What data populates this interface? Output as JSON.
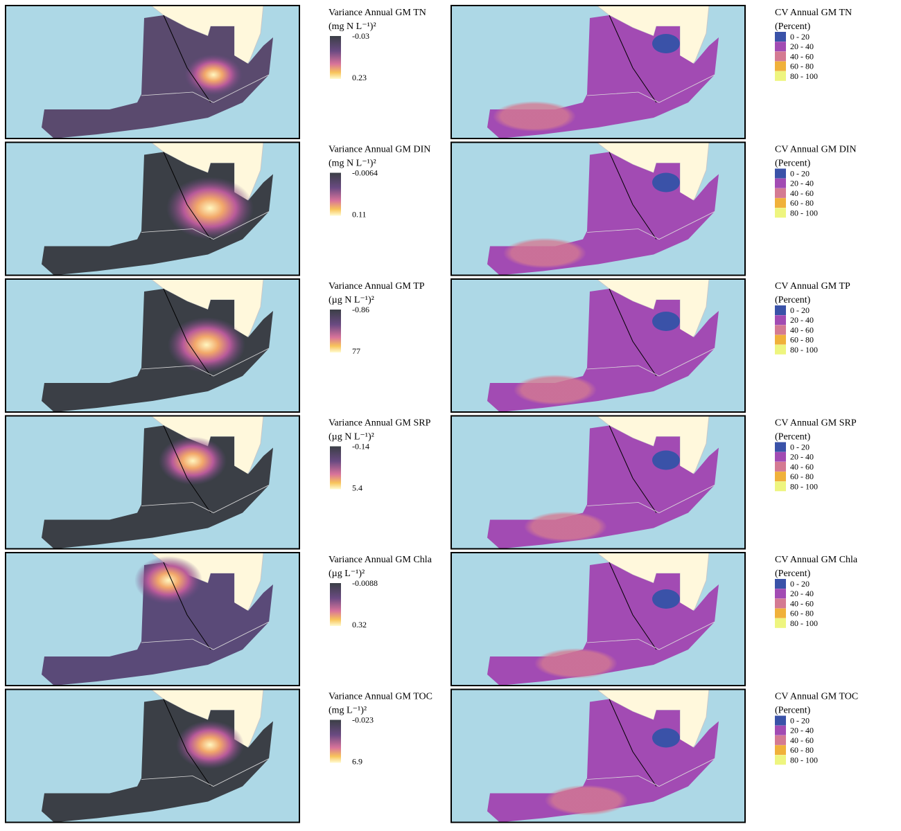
{
  "panels": [
    {
      "variance": {
        "title": "Variance Annual GM TN",
        "unit": "(mg N L⁻¹)²",
        "top": -0.03,
        "bottom": 0.23
      },
      "cv": {
        "title": "CV Annual GM TN",
        "unit": "(Percent)"
      }
    },
    {
      "variance": {
        "title": "Variance Annual GM DIN",
        "unit": "(mg N L⁻¹)²",
        "top": -0.0064,
        "bottom": 0.11
      },
      "cv": {
        "title": "CV Annual GM DIN",
        "unit": "(Percent)"
      }
    },
    {
      "variance": {
        "title": "Variance Annual GM TP",
        "unit": "(µg N L⁻¹)²",
        "top": -0.86,
        "bottom": 77
      },
      "cv": {
        "title": "CV Annual GM TP",
        "unit": "(Percent)"
      }
    },
    {
      "variance": {
        "title": "Variance Annual GM SRP",
        "unit": "(µg N L⁻¹)²",
        "top": -0.14,
        "bottom": 5.4
      },
      "cv": {
        "title": "CV Annual GM SRP",
        "unit": "(Percent)"
      }
    },
    {
      "variance": {
        "title": "Variance Annual GM Chla",
        "unit": "(µg L⁻¹)²",
        "top": -0.0088,
        "bottom": 0.32
      },
      "cv": {
        "title": "CV Annual GM Chla",
        "unit": "(Percent)"
      }
    },
    {
      "variance": {
        "title": "Variance Annual GM TOC",
        "unit": "(mg L⁻¹)²",
        "top": -0.023,
        "bottom": 6.9
      },
      "cv": {
        "title": "CV Annual GM TOC",
        "unit": "(Percent)"
      }
    }
  ],
  "cv_legend": {
    "classes": [
      "0 - 20",
      "20 - 40",
      "40 - 60",
      "60 - 80",
      "80 - 100"
    ],
    "colors": [
      "#3a52a8",
      "#a24bb3",
      "#d47a92",
      "#f0b13a",
      "#eef57f"
    ]
  }
}
